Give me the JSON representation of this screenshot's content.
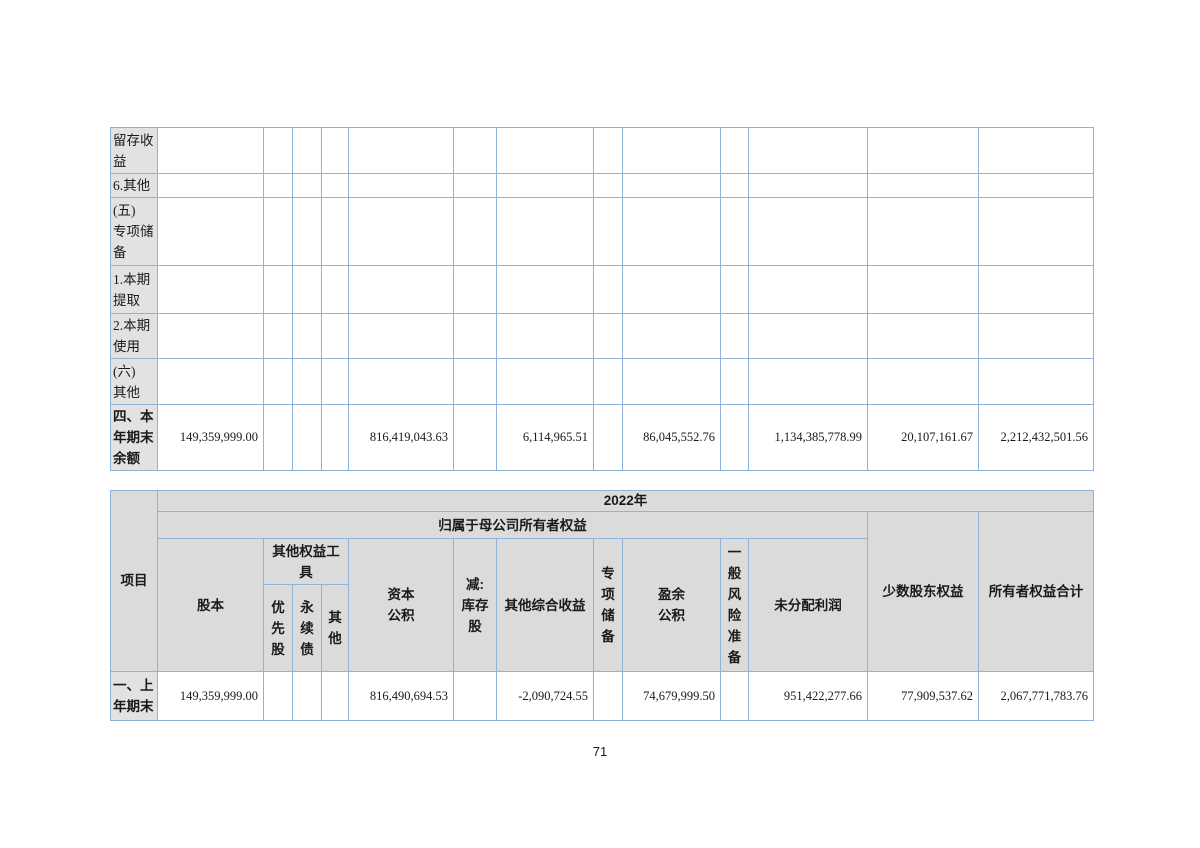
{
  "page": {
    "number": "71"
  },
  "colors": {
    "border": "#8db3d9",
    "header_fill": "#dbdbdb",
    "label_fill": "#e2e2e2",
    "text": "#1a1a1a"
  },
  "table1": {
    "rows": [
      {
        "label": "留存收\n益",
        "bold": false,
        "values": [
          "",
          "",
          "",
          "",
          "",
          "",
          "",
          "",
          "",
          "",
          "",
          "",
          ""
        ]
      },
      {
        "label": "6.其他",
        "bold": false,
        "values": [
          "",
          "",
          "",
          "",
          "",
          "",
          "",
          "",
          "",
          "",
          "",
          "",
          ""
        ]
      },
      {
        "label": "(五)\n专项储\n备",
        "bold": false,
        "values": [
          "",
          "",
          "",
          "",
          "",
          "",
          "",
          "",
          "",
          "",
          "",
          "",
          ""
        ]
      },
      {
        "label": "1.本期\n提取",
        "bold": false,
        "values": [
          "",
          "",
          "",
          "",
          "",
          "",
          "",
          "",
          "",
          "",
          "",
          "",
          ""
        ]
      },
      {
        "label": "2.本期\n使用",
        "bold": false,
        "values": [
          "",
          "",
          "",
          "",
          "",
          "",
          "",
          "",
          "",
          "",
          "",
          "",
          ""
        ]
      },
      {
        "label": "(六)\n其他",
        "bold": false,
        "values": [
          "",
          "",
          "",
          "",
          "",
          "",
          "",
          "",
          "",
          "",
          "",
          "",
          ""
        ]
      },
      {
        "label": "四、本\n年期末\n余额",
        "bold": true,
        "values": [
          "149,359,999.00",
          "",
          "",
          "",
          "816,419,043.63",
          "",
          "6,114,965.51",
          "",
          "86,045,552.76",
          "",
          "1,134,385,778.99",
          "20,107,161.67",
          "2,212,432,501.56"
        ]
      }
    ]
  },
  "table2": {
    "item_header": "项目",
    "year_header": "2022年",
    "parent_header": "归属于母公司所有者权益",
    "col_headers": {
      "share_capital": "股本",
      "other_equity_tools": "其他权益工\n具",
      "preferred": "优\n先\n股",
      "perpetual": "永\n续\n债",
      "other": "其\n他",
      "capital_reserve": "资本\n公积",
      "treasury_deduct": "减:\n库存\n股",
      "oci": "其他综合收益",
      "special_reserve": "专\n项\n储\n备",
      "surplus_reserve": "盈余\n公积",
      "general_risk": "一\n般\n风\n险\n准\n备",
      "retained_profit": "未分配利润",
      "minority": "少数股东权益",
      "total": "所有者权益合计"
    },
    "rows": [
      {
        "label": "一、上\n年期末",
        "bold": true,
        "values": [
          "149,359,999.00",
          "",
          "",
          "",
          "816,490,694.53",
          "",
          "-2,090,724.55",
          "",
          "74,679,999.50",
          "",
          "951,422,277.66",
          "77,909,537.62",
          "2,067,771,783.76"
        ]
      }
    ]
  }
}
